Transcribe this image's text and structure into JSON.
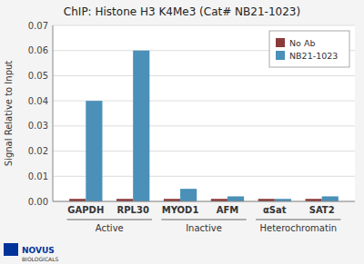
{
  "chart_data": {
    "type": "bar",
    "title": "ChIP: Histone H3 K4Me3 (Cat# NB21-1023)",
    "y_label": "Signal Relative to Input",
    "categories": [
      "GAPDH",
      "RPL30",
      "MYOD1",
      "AFM",
      "αSat",
      "SAT2"
    ],
    "group_labels": [
      "Active",
      "Inactive",
      "Heterochromatin"
    ],
    "series": [
      {
        "name": "No Ab",
        "color": "#8B3A3A",
        "values": [
          0.001,
          0.001,
          0.001,
          0.001,
          0.001,
          0.001
        ]
      },
      {
        "name": "NB21-1023",
        "color": "#4A90B8",
        "values": [
          0.04,
          0.06,
          0.005,
          0.002,
          0.001,
          0.002
        ]
      }
    ],
    "ylim": [
      0,
      0.07
    ],
    "yticks": [
      {
        "value": 0.0,
        "label": "0.00"
      },
      0.01,
      0.02,
      0.03,
      0.04,
      0.05,
      0.06,
      0.07
    ],
    "grid": true,
    "legend": "upper right",
    "annotations": [
      "NOVUS",
      "BIOLOGICALS"
    ]
  }
}
